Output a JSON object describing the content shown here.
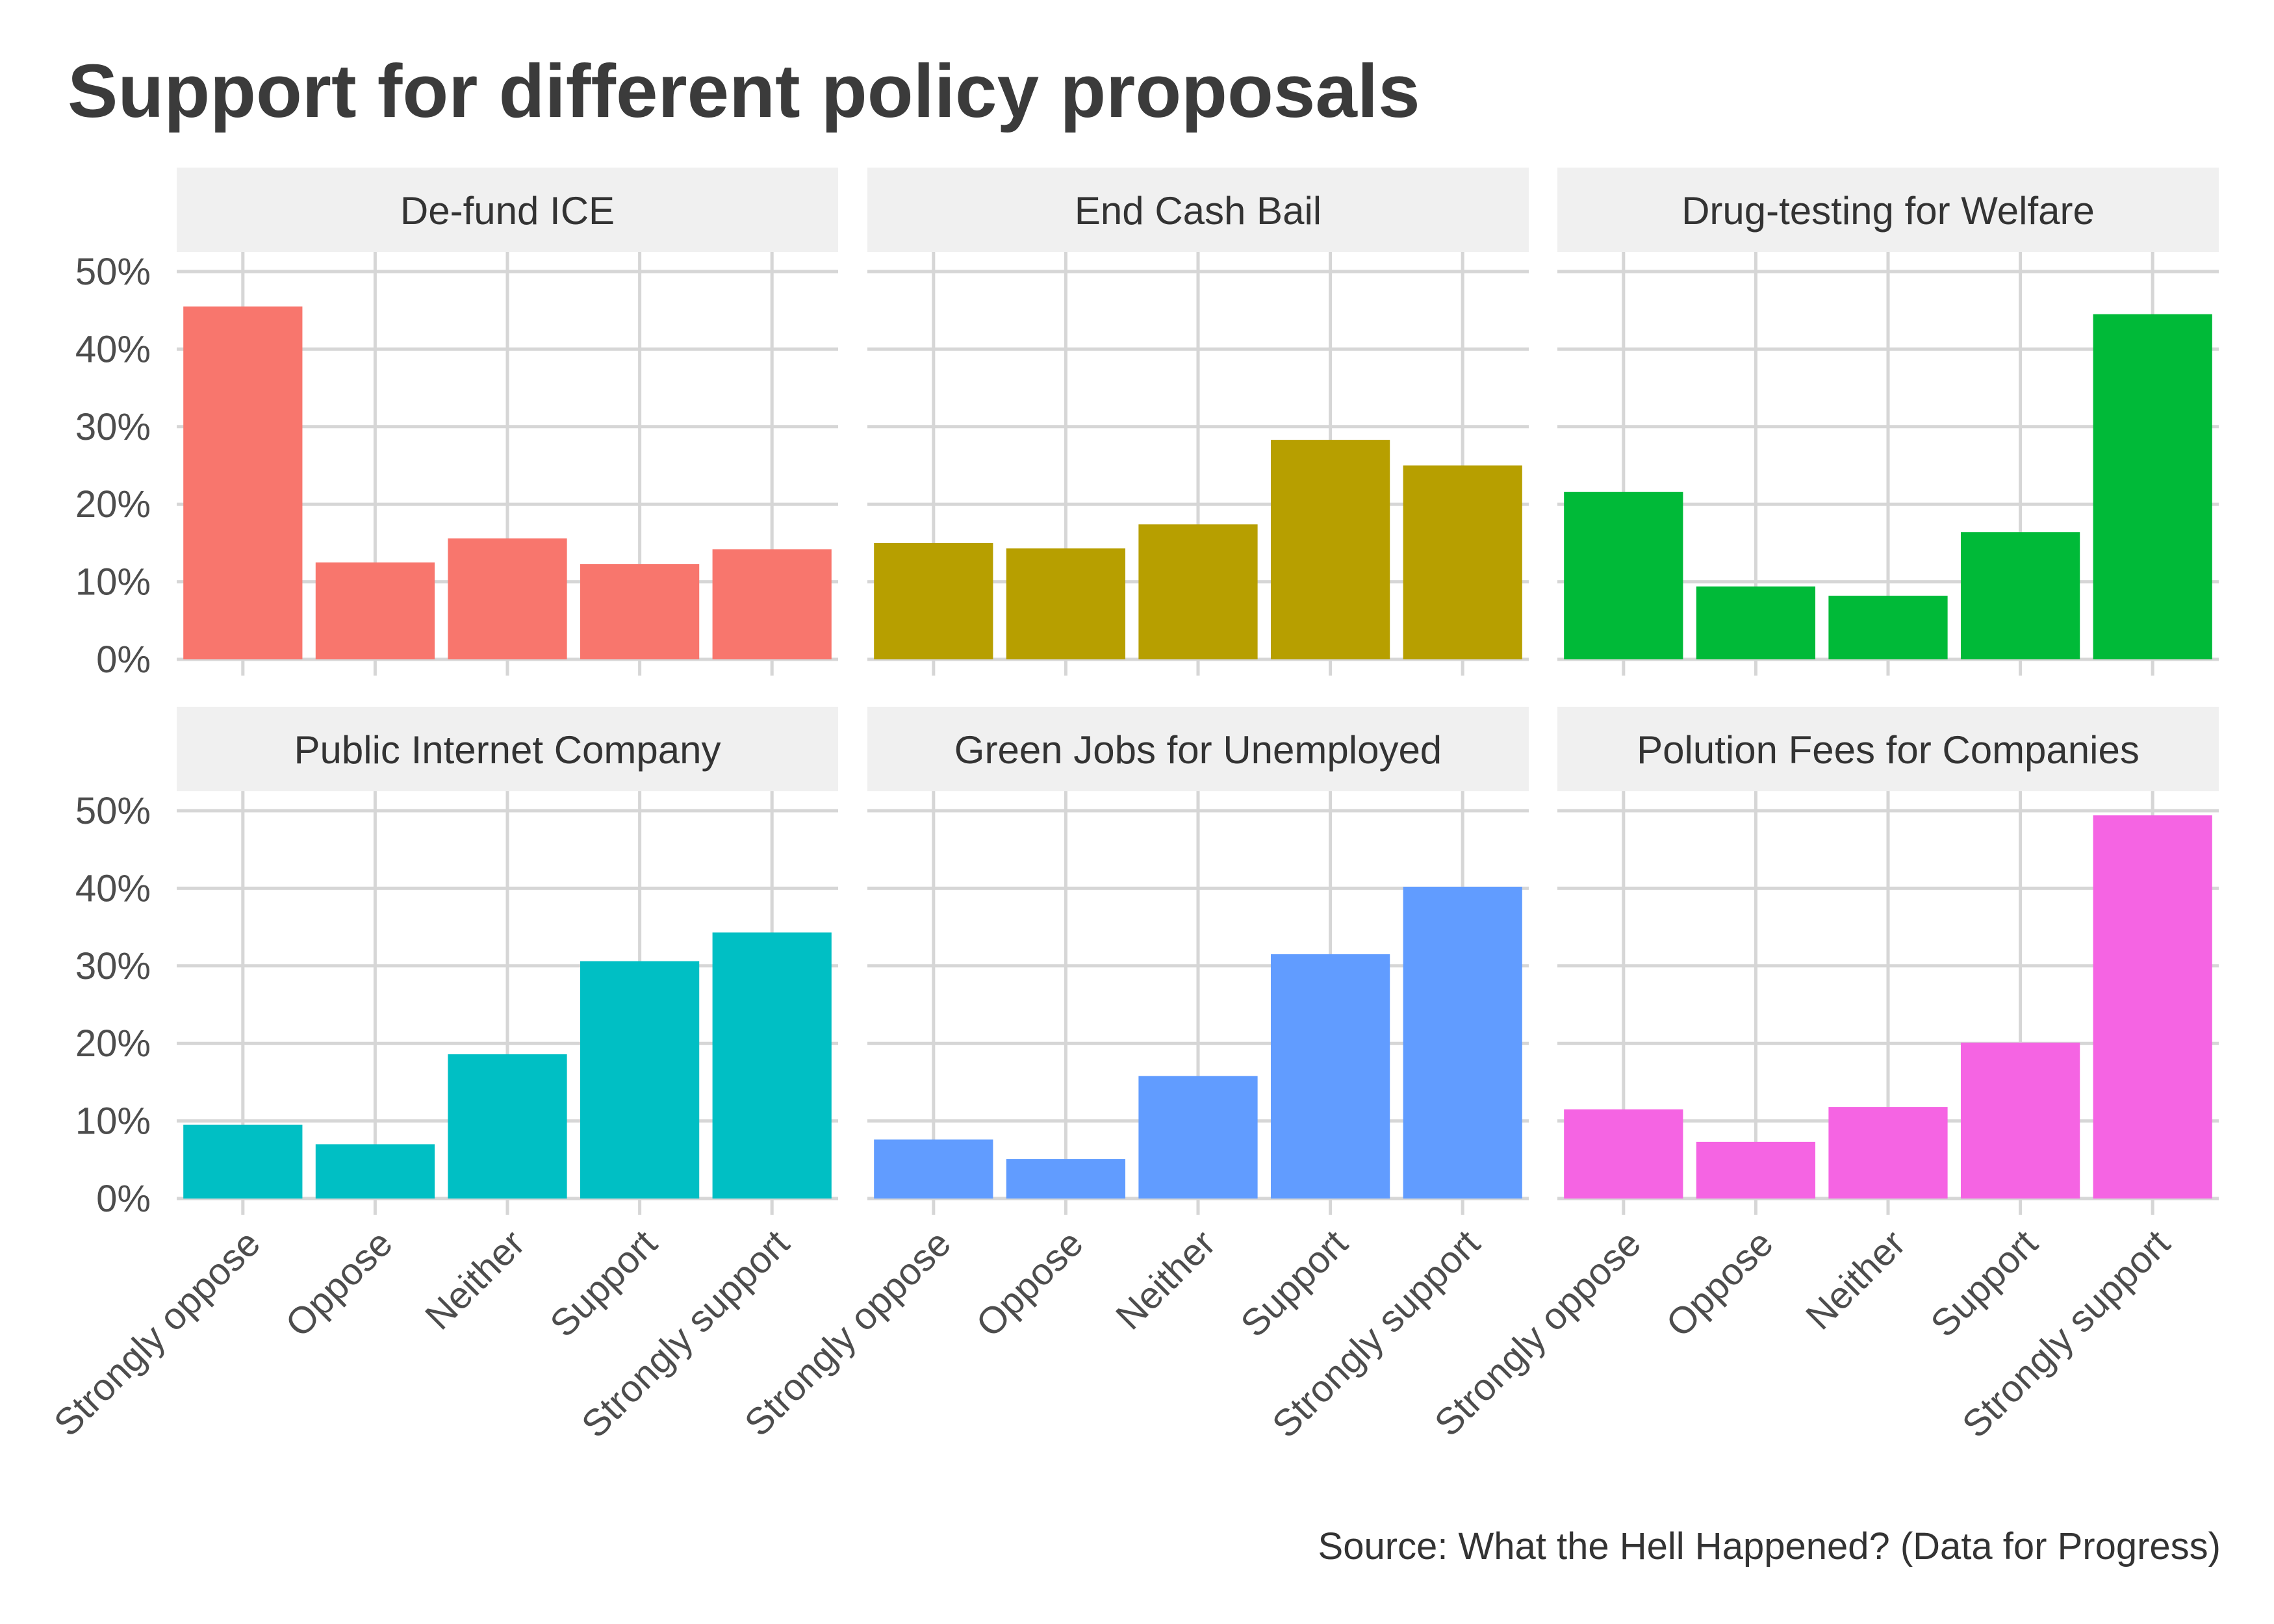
{
  "chart_data": {
    "type": "bar",
    "title": "Support for different policy proposals",
    "caption": "Source: What the Hell Happened? (Data for Progress)",
    "categories": [
      "Strongly oppose",
      "Oppose",
      "Neither",
      "Support",
      "Strongly support"
    ],
    "y_ticks": [
      "0%",
      "10%",
      "20%",
      "30%",
      "40%",
      "50%"
    ],
    "ylim": [
      0,
      50
    ],
    "grid": true,
    "legend": "none",
    "panels": [
      {
        "name": "De-fund ICE",
        "color": "#F8766D",
        "values": [
          45.5,
          12.5,
          15.6,
          12.3,
          14.2
        ]
      },
      {
        "name": "End Cash Bail",
        "color": "#B79F00",
        "values": [
          15.0,
          14.3,
          17.4,
          28.3,
          25.0
        ]
      },
      {
        "name": "Drug-testing for Welfare",
        "color": "#00BA38",
        "values": [
          21.6,
          9.4,
          8.2,
          16.4,
          44.5
        ]
      },
      {
        "name": "Public Internet Company",
        "color": "#00BFC4",
        "values": [
          9.5,
          7.0,
          18.6,
          30.6,
          34.3
        ]
      },
      {
        "name": "Green Jobs for Unemployed",
        "color": "#619CFF",
        "values": [
          7.6,
          5.1,
          15.8,
          31.5,
          40.2
        ]
      },
      {
        "name": "Polution Fees for Companies",
        "color": "#F564E3",
        "values": [
          11.5,
          7.3,
          11.8,
          20.1,
          49.4
        ]
      }
    ]
  }
}
